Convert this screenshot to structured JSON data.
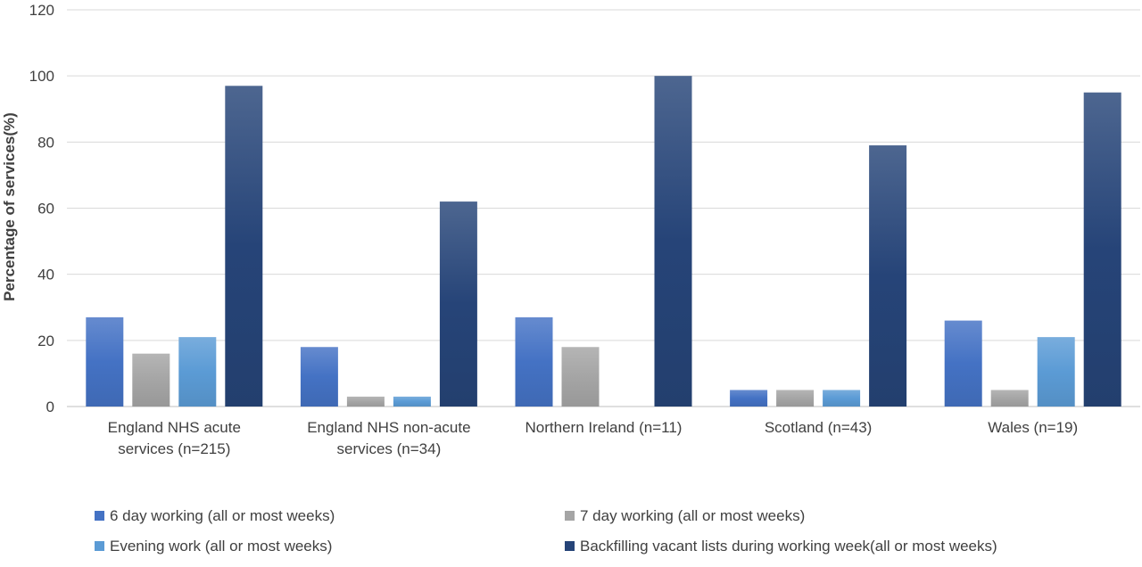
{
  "chart_data": {
    "type": "bar",
    "title": "",
    "xlabel": "",
    "ylabel": "Percentage of services(%)",
    "ylim": [
      0,
      120
    ],
    "yticks": [
      0,
      20,
      40,
      60,
      80,
      100,
      120
    ],
    "grid": true,
    "legend_position": "bottom",
    "categories": [
      [
        "England NHS acute",
        "services (n=215)"
      ],
      [
        "England NHS non-acute",
        "services (n=34)"
      ],
      [
        "Northern Ireland (n=11)"
      ],
      [
        "Scotland (n=43)"
      ],
      [
        "Wales (n=19)"
      ]
    ],
    "series": [
      {
        "name": "6 day working (all or most weeks)",
        "color": "#4472C4",
        "values": [
          27,
          18,
          27,
          5,
          26
        ]
      },
      {
        "name": "7 day working (all or most weeks)",
        "color": "#A5A5A5",
        "values": [
          16,
          3,
          18,
          5,
          5
        ]
      },
      {
        "name": "Evening work (all or most weeks)",
        "color": "#5B9BD5",
        "values": [
          21,
          3,
          0,
          5,
          21
        ]
      },
      {
        "name": "Backfilling vacant lists during working week(all or most weeks)",
        "color": "#264478",
        "values": [
          97,
          62,
          100,
          79,
          95
        ]
      }
    ]
  }
}
